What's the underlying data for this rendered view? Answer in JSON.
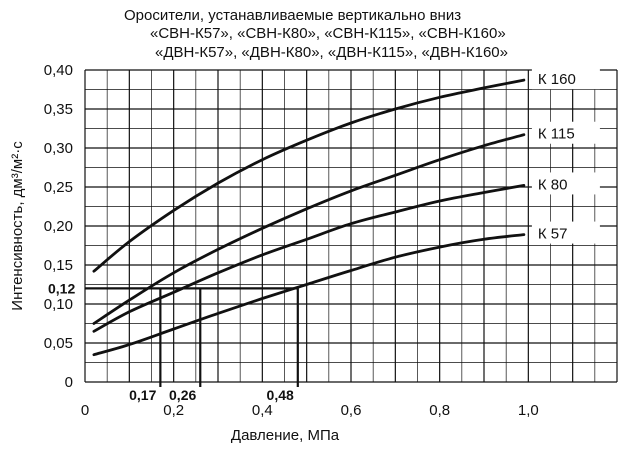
{
  "chart_data": {
    "type": "line",
    "title": [
      "Оросители, устанавливаемые вертикально вниз",
      "«СВН-К57», «СВН-К80», «СВН-К115», «СВН-К160»",
      "«ДВН-К57», «ДВН-К80», «ДВН-К115», «ДВН-К160»"
    ],
    "xlabel": "Давление, МПа",
    "ylabel": "Интенсивность, дм³/м²·с",
    "xlim": [
      0,
      1.2
    ],
    "ylim": [
      0,
      0.4
    ],
    "x_ticks": [
      "0",
      "0,2",
      "0,4",
      "0,6",
      "0,8",
      "1,0"
    ],
    "y_ticks": [
      "0",
      "0,05",
      "0,10",
      "0,15",
      "0,20",
      "0,25",
      "0,30",
      "0,35",
      "0,40"
    ],
    "grid": true,
    "series": [
      {
        "name": "К 160",
        "x": [
          0.02,
          0.1,
          0.2,
          0.3,
          0.4,
          0.5,
          0.6,
          0.7,
          0.8,
          0.9,
          0.99
        ],
        "y": [
          0.142,
          0.18,
          0.22,
          0.255,
          0.285,
          0.31,
          0.332,
          0.35,
          0.365,
          0.377,
          0.387
        ]
      },
      {
        "name": "К 115",
        "x": [
          0.02,
          0.1,
          0.2,
          0.3,
          0.4,
          0.5,
          0.6,
          0.7,
          0.8,
          0.9,
          0.99
        ],
        "y": [
          0.075,
          0.105,
          0.14,
          0.17,
          0.197,
          0.222,
          0.245,
          0.265,
          0.285,
          0.303,
          0.317
        ]
      },
      {
        "name": "К 80",
        "x": [
          0.02,
          0.1,
          0.2,
          0.3,
          0.4,
          0.5,
          0.6,
          0.7,
          0.8,
          0.9,
          0.99
        ],
        "y": [
          0.065,
          0.09,
          0.115,
          0.14,
          0.163,
          0.183,
          0.203,
          0.218,
          0.232,
          0.243,
          0.252
        ]
      },
      {
        "name": "К 57",
        "x": [
          0.02,
          0.1,
          0.2,
          0.3,
          0.4,
          0.5,
          0.6,
          0.7,
          0.8,
          0.9,
          0.99
        ],
        "y": [
          0.035,
          0.048,
          0.068,
          0.088,
          0.107,
          0.125,
          0.143,
          0.16,
          0.173,
          0.183,
          0.189
        ]
      }
    ],
    "annotations": {
      "y_value": 0.12,
      "y_value_label": "0,12",
      "x_values": [
        0.17,
        0.26,
        0.48
      ],
      "x_value_labels": [
        "0,17",
        "0,26",
        "0,48"
      ]
    }
  }
}
